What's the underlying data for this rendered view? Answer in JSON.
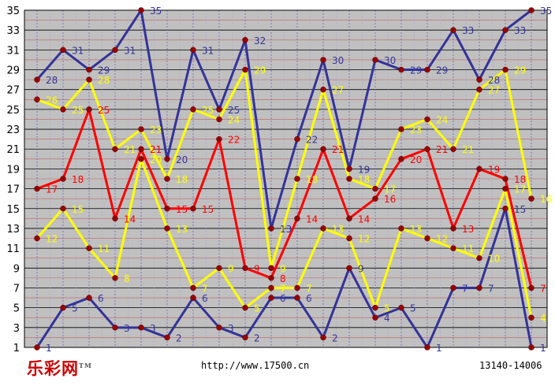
{
  "chart_data": {
    "type": "line",
    "title": "",
    "xlabel": "",
    "ylabel": "",
    "ylim": [
      1,
      35
    ],
    "y_ticks": [
      1,
      3,
      5,
      7,
      9,
      11,
      13,
      15,
      17,
      19,
      21,
      23,
      25,
      27,
      29,
      31,
      33,
      35
    ],
    "grid": true,
    "background": "#c0c0c0",
    "x_count": 20,
    "series": [
      {
        "color": "#333399",
        "values": [
          28,
          31,
          29,
          31,
          35,
          20,
          31,
          25,
          32,
          13,
          22,
          30,
          19,
          30,
          29,
          29,
          33,
          28,
          33,
          35
        ]
      },
      {
        "color": "#ffff00",
        "values": [
          26,
          25,
          28,
          21,
          23,
          18,
          25,
          24,
          29,
          9,
          18,
          27,
          18,
          17,
          23,
          24,
          21,
          27,
          29,
          16
        ]
      },
      {
        "color": "#ff0000",
        "values": [
          17,
          18,
          25,
          14,
          21,
          15,
          15,
          22,
          9,
          8,
          14,
          21,
          14,
          16,
          20,
          21,
          13,
          19,
          18,
          7
        ]
      },
      {
        "color": "#ffff00",
        "values": [
          12,
          15,
          11,
          8,
          20,
          13,
          7,
          9,
          5,
          7,
          7,
          13,
          12,
          5,
          13,
          12,
          11,
          10,
          17,
          4
        ]
      },
      {
        "color": "#333399",
        "values": [
          1,
          5,
          6,
          3,
          3,
          2,
          6,
          3,
          2,
          6,
          6,
          2,
          9,
          4,
          5,
          1,
          7,
          7,
          15,
          1
        ]
      }
    ]
  },
  "footer": {
    "logo": "乐彩网",
    "trademark": "TM",
    "url": "http://www.17500.cn",
    "issue_range": "13140-14006"
  }
}
